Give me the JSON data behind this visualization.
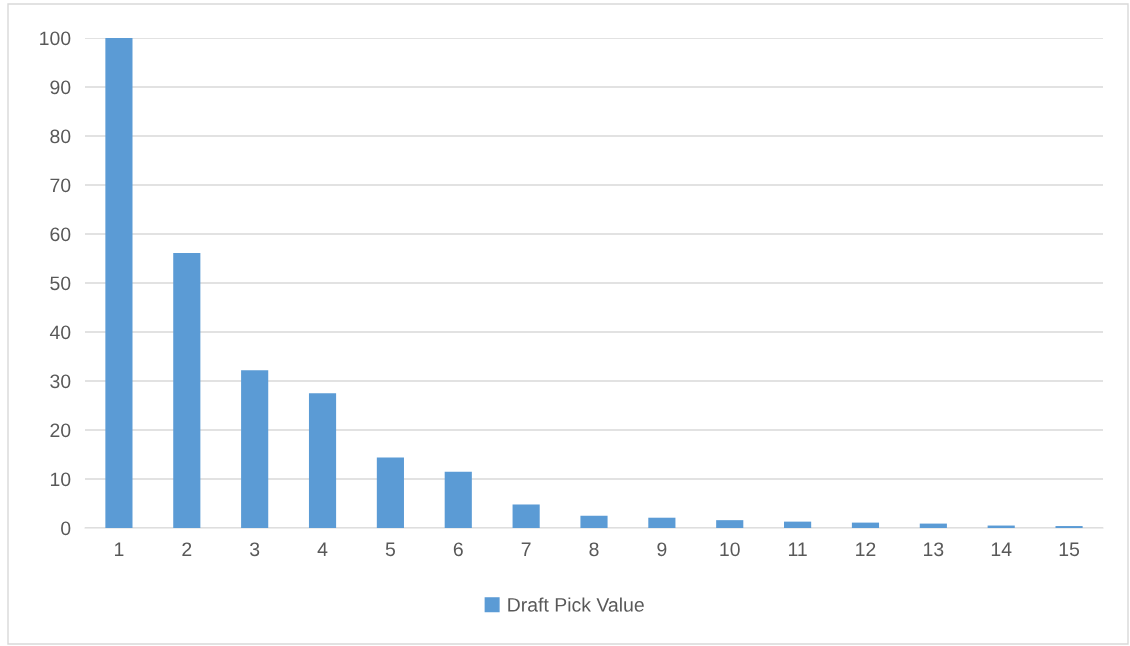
{
  "chart_data": {
    "type": "bar",
    "categories": [
      "1",
      "2",
      "3",
      "4",
      "5",
      "6",
      "7",
      "8",
      "9",
      "10",
      "11",
      "12",
      "13",
      "14",
      "15"
    ],
    "series": [
      {
        "name": "Draft Pick Value",
        "color": "#5b9bd5",
        "values": [
          100,
          56.1,
          32.2,
          27.5,
          14.4,
          11.5,
          4.8,
          2.5,
          2.1,
          1.6,
          1.3,
          1.1,
          0.9,
          0.5,
          0.4
        ]
      }
    ],
    "ylim": [
      0,
      100
    ],
    "yticks": [
      0,
      10,
      20,
      30,
      40,
      50,
      60,
      70,
      80,
      90,
      100
    ],
    "grid": "y",
    "legend": "bottom"
  }
}
